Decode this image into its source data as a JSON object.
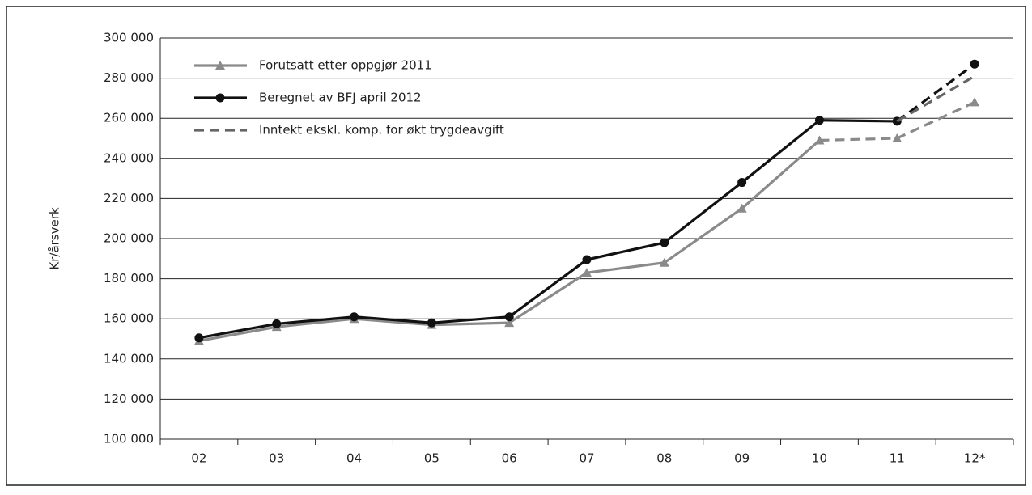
{
  "chart_data": {
    "type": "line",
    "y_label": "Kr/årsverk",
    "categories": [
      "02",
      "03",
      "04",
      "05",
      "06",
      "07",
      "08",
      "09",
      "10",
      "11",
      "12*"
    ],
    "series": [
      {
        "name": "Forutsatt etter oppgjør 2011",
        "color": "#8a8a8a",
        "marker": "triangle",
        "dashed_from": 8,
        "values": [
          149000,
          156000,
          160000,
          157000,
          158000,
          183000,
          188000,
          215000,
          249000,
          250000,
          268000
        ]
      },
      {
        "name": "Beregnet av BFJ april 2012",
        "color": "#111111",
        "marker": "circle",
        "dashed_from": 9,
        "values": [
          150500,
          157500,
          161000,
          158000,
          161000,
          189500,
          198000,
          228000,
          259000,
          258500,
          287000
        ]
      },
      {
        "name": "Inntekt ekskl. komp. for økt trygdeavgift",
        "color": "#666666",
        "marker": "none",
        "dashed_from": 0,
        "values": [
          null,
          null,
          null,
          null,
          null,
          null,
          null,
          null,
          null,
          258500,
          281000
        ]
      }
    ],
    "ylim": [
      100000,
      300000
    ],
    "yticks": [
      {
        "value": 100000,
        "label": "100 000"
      },
      {
        "value": 120000,
        "label": "120 000"
      },
      {
        "value": 140000,
        "label": "140 000"
      },
      {
        "value": 160000,
        "label": "160 000"
      },
      {
        "value": 180000,
        "label": "180 000"
      },
      {
        "value": 200000,
        "label": "200 000"
      },
      {
        "value": 220000,
        "label": "220 000"
      },
      {
        "value": 240000,
        "label": "240 000"
      },
      {
        "value": 260000,
        "label": "260 000"
      },
      {
        "value": 280000,
        "label": "280 000"
      },
      {
        "value": 300000,
        "label": "300 000"
      }
    ],
    "grid": true,
    "legend": "upper left"
  }
}
